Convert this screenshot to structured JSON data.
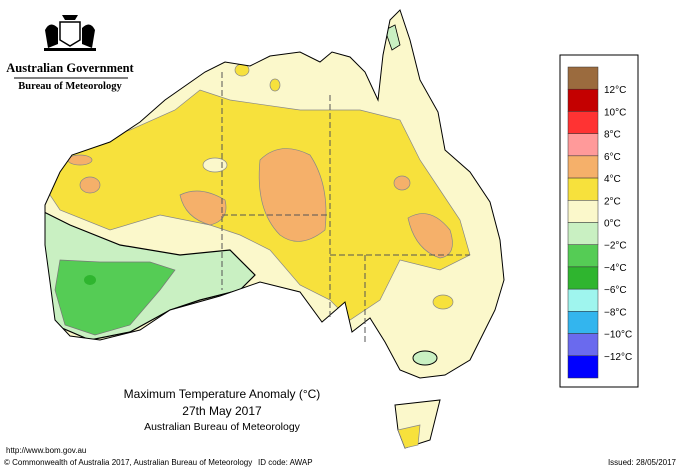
{
  "header": {
    "government": "Australian Government",
    "bureau": "Bureau of Meteorology"
  },
  "map": {
    "title": "Maximum Temperature Anomaly (°C)",
    "date": "27th May 2017",
    "source": "Australian Bureau of Meteorology"
  },
  "legend": {
    "colors": [
      "#9b6b3e",
      "#c40000",
      "#ff3333",
      "#ff9a9a",
      "#f5b06a",
      "#f7e13c",
      "#fbf8cb",
      "#c9f0c2",
      "#55cc55",
      "#2fb52f",
      "#9ff5ee",
      "#33b5ee",
      "#6a6aee",
      "#0000ff"
    ],
    "labels": [
      "12°C",
      "10°C",
      "8°C",
      "6°C",
      "4°C",
      "2°C",
      "0°C",
      "−2°C",
      "−4°C",
      "−6°C",
      "−8°C",
      "−10°C",
      "−12°C"
    ]
  },
  "footer": {
    "url": "http://www.bom.gov.au",
    "copyright": "© Commonwealth of Australia 2017, Australian Bureau of Meteorology",
    "id_code": "ID code: AWAP",
    "issued": "Issued: 28/05/2017"
  }
}
